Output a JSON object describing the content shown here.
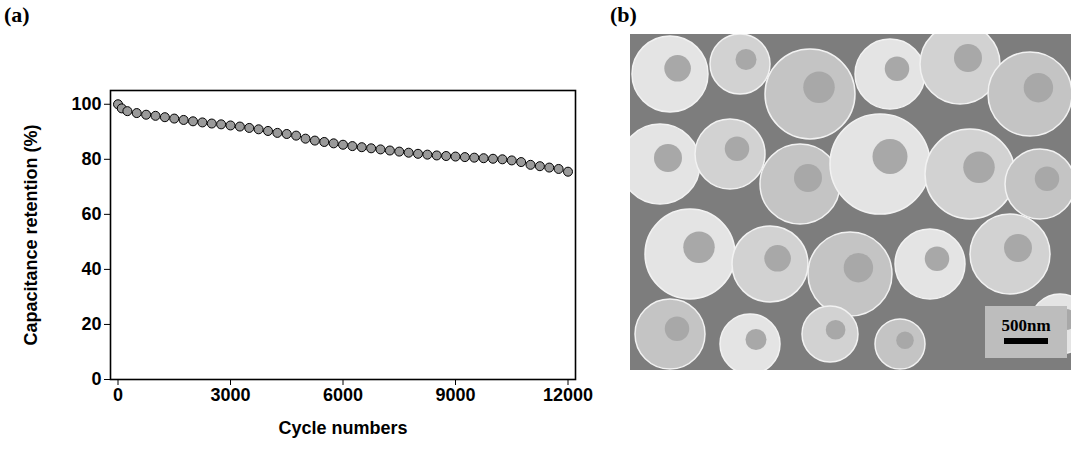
{
  "chart_data": {
    "type": "scatter",
    "panel_label": "(a)",
    "x_label": "Cycle numbers",
    "y_label": "Capacitance retention (%)",
    "x": [
      0,
      100,
      250,
      500,
      750,
      1000,
      1250,
      1500,
      1750,
      2000,
      2250,
      2500,
      2750,
      3000,
      3250,
      3500,
      3750,
      4000,
      4250,
      4500,
      4750,
      5000,
      5250,
      5500,
      5750,
      6000,
      6250,
      6500,
      6750,
      7000,
      7250,
      7500,
      7750,
      8000,
      8250,
      8500,
      8750,
      9000,
      9250,
      9500,
      9750,
      10000,
      10250,
      10500,
      10750,
      11000,
      11250,
      11500,
      11750,
      12000
    ],
    "values": [
      100,
      98.5,
      97.5,
      96.8,
      96.2,
      95.8,
      95.3,
      94.8,
      94.3,
      93.8,
      93.4,
      93.0,
      92.7,
      92.3,
      91.9,
      91.4,
      90.9,
      90.3,
      89.6,
      89.2,
      88.6,
      87.5,
      86.8,
      86.3,
      85.8,
      85.3,
      84.8,
      84.4,
      84.0,
      83.6,
      83.2,
      82.8,
      82.4,
      82.0,
      81.7,
      81.4,
      81.2,
      81.0,
      80.8,
      80.6,
      80.4,
      80.2,
      80.0,
      79.6,
      79.0,
      78.0,
      77.5,
      77.0,
      76.5,
      75.5
    ],
    "color": "#000000",
    "marker": "circle",
    "xlim": [
      -200,
      12200
    ],
    "xticks": [
      0,
      3000,
      6000,
      9000,
      12000
    ],
    "ylim": [
      0,
      105
    ],
    "yticks": [
      0,
      20,
      40,
      60,
      80,
      100
    ],
    "grid": false
  },
  "image": {
    "panel_label": "(b)",
    "scale_bar": "500nm"
  }
}
